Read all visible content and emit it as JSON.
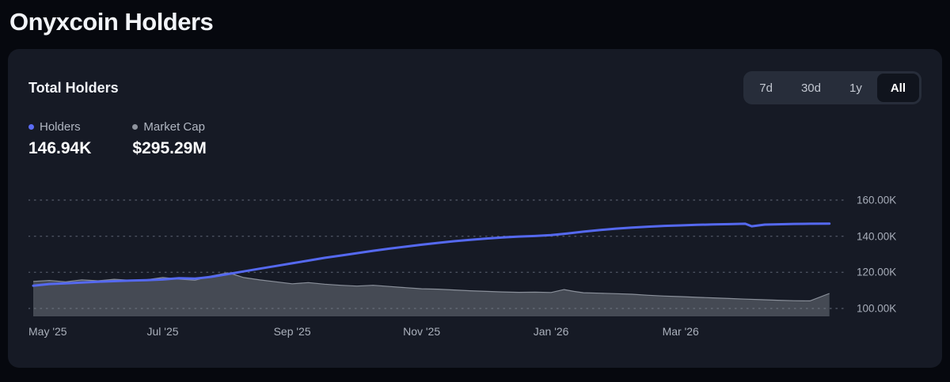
{
  "page": {
    "title": "Onyxcoin Holders"
  },
  "card": {
    "title": "Total Holders"
  },
  "time_ranges": {
    "options": [
      "7d",
      "30d",
      "1y",
      "All"
    ],
    "selected": "All"
  },
  "legend": {
    "holders": {
      "label": "Holders",
      "value": "146.94K",
      "color": "#5b6cf5"
    },
    "market_cap": {
      "label": "Market Cap",
      "value": "$295.29M",
      "color": "#8f949e"
    }
  },
  "chart_data": {
    "type": "line",
    "title": "Total Holders",
    "x_unit": "months since 2025-05-01",
    "xlim": [
      0,
      12.45
    ],
    "grid": "dotted horizontal lines",
    "legend_position": "top-left",
    "x_ticks": [
      {
        "pos": 0,
        "label": "May '25"
      },
      {
        "pos": 2,
        "label": "Jul '25"
      },
      {
        "pos": 4,
        "label": "Sep '25"
      },
      {
        "pos": 6,
        "label": "Nov '25"
      },
      {
        "pos": 8,
        "label": "Jan '26"
      },
      {
        "pos": 10,
        "label": "Mar '26"
      }
    ],
    "right_axis": {
      "unit": "thousands of holders",
      "lim": [
        95.6,
        169.2
      ],
      "ticks": [
        {
          "value": 160,
          "label": "160.00K"
        },
        {
          "value": 140,
          "label": "140.00K"
        },
        {
          "value": 120,
          "label": "120.00K"
        },
        {
          "value": 100,
          "label": "100.00K"
        }
      ]
    },
    "marketcap_axis": {
      "unit": "USD millions (hidden axis)",
      "lim": [
        0,
        1711
      ]
    },
    "series": [
      {
        "name": "Holders",
        "type": "line",
        "color": "#5569f0",
        "axis": "right",
        "current": "146.94K",
        "x": [
          0,
          0.25,
          0.5,
          0.75,
          1,
          1.25,
          1.5,
          1.75,
          2,
          2.25,
          2.5,
          2.75,
          3,
          3.25,
          3.5,
          3.75,
          4,
          4.25,
          4.5,
          4.75,
          5,
          5.25,
          5.5,
          5.75,
          6,
          6.25,
          6.5,
          6.75,
          7,
          7.25,
          7.5,
          7.75,
          8,
          8.25,
          8.5,
          8.75,
          9,
          9.25,
          9.5,
          9.75,
          10,
          10.25,
          10.5,
          10.75,
          11,
          11.1,
          11.3,
          11.5,
          11.75,
          12,
          12.3
        ],
        "y": [
          112.6,
          113.5,
          113.9,
          114.3,
          114.8,
          115.1,
          115.4,
          115.6,
          116.0,
          116.7,
          116.5,
          117.5,
          119.0,
          120.5,
          122.0,
          123.5,
          125.0,
          126.5,
          128.0,
          129.3,
          130.6,
          131.9,
          133.1,
          134.2,
          135.3,
          136.3,
          137.2,
          138.0,
          138.7,
          139.3,
          139.8,
          140.1,
          140.6,
          141.5,
          142.5,
          143.4,
          144.2,
          144.8,
          145.3,
          145.7,
          146.0,
          146.3,
          146.5,
          146.7,
          146.9,
          145.5,
          146.4,
          146.6,
          146.8,
          146.9,
          146.94
        ]
      },
      {
        "name": "Market Cap",
        "type": "area",
        "color": "#7e848f",
        "edge_color": "#9aa0aa",
        "fill_opacity": 0.45,
        "axis": "marketcap",
        "current": "$295.29M",
        "x": [
          0,
          0.25,
          0.5,
          0.75,
          1,
          1.25,
          1.5,
          1.75,
          2,
          2.25,
          2.5,
          2.75,
          3,
          3.1,
          3.25,
          3.5,
          3.75,
          4,
          4.25,
          4.5,
          4.75,
          5,
          5.25,
          5.5,
          5.75,
          6,
          6.25,
          6.5,
          6.75,
          7,
          7.25,
          7.5,
          7.75,
          8,
          8.2,
          8.35,
          8.5,
          8.75,
          9,
          9.25,
          9.5,
          9.75,
          10,
          10.25,
          10.5,
          10.75,
          11,
          11.25,
          11.5,
          11.75,
          12,
          12.3
        ],
        "y": [
          450,
          462,
          445,
          470,
          458,
          478,
          465,
          472,
          500,
          480,
          465,
          520,
          560,
          540,
          500,
          470,
          445,
          420,
          435,
          415,
          400,
          390,
          400,
          385,
          370,
          355,
          350,
          340,
          330,
          322,
          315,
          310,
          312,
          308,
          345,
          322,
          305,
          298,
          292,
          285,
          272,
          262,
          255,
          245,
          238,
          230,
          222,
          215,
          208,
          202,
          200,
          295.29
        ]
      }
    ]
  }
}
